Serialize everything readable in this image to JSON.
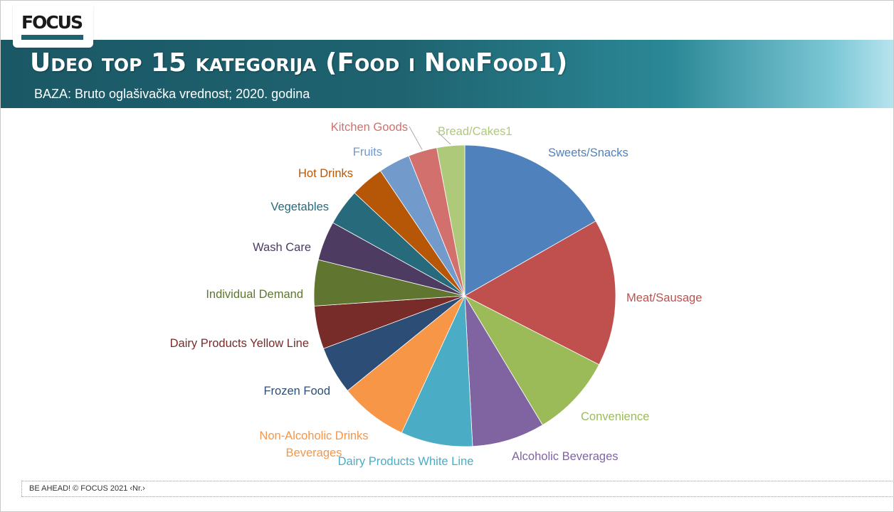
{
  "header": {
    "logo_text": "FOCUS",
    "title": "Udeo top 15 kategorija (Food i NonFood1)",
    "subtitle": "BAZA: Bruto oglašivačka vrednost; 2020. godina"
  },
  "footer": {
    "text": "BE AHEAD! © FOCUS 2021 ‹Nr.›"
  },
  "colors": {
    "banner_dark": "#1b5866",
    "banner_light": "#b9e4ee"
  },
  "chart_data": {
    "type": "pie",
    "title": "",
    "legend": "none",
    "categories": [
      "Sweets/Snacks",
      "Meat/Sausage",
      "Convenience",
      "Alcoholic Beverages",
      "Dairy Products White Line",
      "Non-Alcoholic Drinks Beverages",
      "Frozen Food",
      "Dairy Products Yellow Line",
      "Individual Demand",
      "Wash Care",
      "Vegetables",
      "Hot Drinks",
      "Fruits",
      "Kitchen Goods",
      "Bread/Cakes1"
    ],
    "values": [
      16.3,
      15.4,
      8.6,
      7.6,
      7.5,
      7.1,
      5.0,
      4.5,
      4.8,
      4.1,
      3.8,
      3.5,
      3.3,
      3.0,
      2.9
    ],
    "colors": [
      "#4f81bd",
      "#c0504d",
      "#9bbb59",
      "#8064a2",
      "#4bacc6",
      "#f79646",
      "#2c4d75",
      "#772c2a",
      "#5f7530",
      "#4d3b62",
      "#276a7c",
      "#b65708",
      "#729aca",
      "#d2706e",
      "#afc97a"
    ],
    "label_colors": [
      "#4f81bd",
      "#c0504d",
      "#9bbb59",
      "#8064a2",
      "#4bacc6",
      "#f79646",
      "#2c4d75",
      "#772c2a",
      "#5f7530",
      "#4d3b62",
      "#276a7c",
      "#b65708",
      "#729aca",
      "#d2706e",
      "#afc97a"
    ]
  }
}
